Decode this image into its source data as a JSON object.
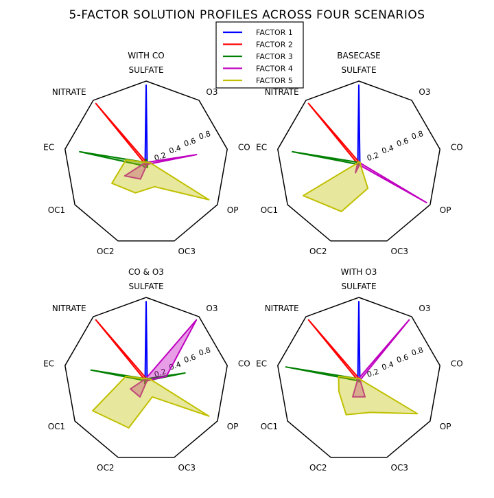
{
  "chart_data": {
    "type": "radar",
    "title": "5-FACTOR SOLUTION PROFILES ACROSS FOUR SCENARIOS",
    "axes": [
      "SULFATE",
      "O3",
      "CO",
      "OP",
      "OC3",
      "OC2",
      "OC1",
      "EC",
      "NITRATE"
    ],
    "ring_labels": [
      "0.2",
      "0.4",
      "0.6",
      "0.8"
    ],
    "rlim": [
      0,
      1
    ],
    "legend": {
      "placement": "top-center",
      "entries": [
        {
          "name": "FACTOR 1",
          "color": "#0000ff"
        },
        {
          "name": "FACTOR 2",
          "color": "#ff0000"
        },
        {
          "name": "FACTOR 3",
          "color": "#008000"
        },
        {
          "name": "FACTOR 4",
          "color": "#c000c0"
        },
        {
          "name": "FACTOR 5",
          "color": "#c0c000"
        }
      ]
    },
    "panels": [
      {
        "title": "WITH CO",
        "series": [
          {
            "name": "FACTOR 1",
            "values": [
              0.95,
              0.02,
              0.02,
              0.02,
              0.02,
              0.02,
              0.02,
              0.02,
              0.02
            ]
          },
          {
            "name": "FACTOR 2",
            "values": [
              0.02,
              0.02,
              0.02,
              0.02,
              0.02,
              0.02,
              0.02,
              0.02,
              0.95
            ]
          },
          {
            "name": "FACTOR 3",
            "values": [
              0.05,
              0.02,
              0.02,
              0.02,
              0.05,
              0.05,
              0.05,
              0.82,
              0.02
            ]
          },
          {
            "name": "FACTOR 4",
            "values": [
              0.02,
              0.02,
              0.62,
              0.02,
              0.02,
              0.2,
              0.3,
              0.02,
              0.02
            ]
          },
          {
            "name": "FACTOR 5",
            "values": [
              0.02,
              0.02,
              0.05,
              0.88,
              0.3,
              0.38,
              0.48,
              0.25,
              0.02
            ]
          }
        ]
      },
      {
        "title": "BASECASE",
        "series": [
          {
            "name": "FACTOR 1",
            "values": [
              0.95,
              0.02,
              0.02,
              0.02,
              0.02,
              0.02,
              0.02,
              0.02,
              0.02
            ]
          },
          {
            "name": "FACTOR 2",
            "values": [
              0.02,
              0.02,
              0.02,
              0.02,
              0.02,
              0.02,
              0.02,
              0.02,
              0.95
            ]
          },
          {
            "name": "FACTOR 3",
            "values": [
              0.02,
              0.02,
              0.02,
              0.02,
              0.02,
              0.02,
              0.02,
              0.82,
              0.02
            ]
          },
          {
            "name": "FACTOR 4",
            "values": [
              0.02,
              0.02,
              0.02,
              0.95,
              0.02,
              0.12,
              0.02,
              0.02,
              0.02
            ]
          },
          {
            "name": "FACTOR 5",
            "values": [
              0.02,
              0.02,
              0.02,
              0.02,
              0.32,
              0.62,
              0.78,
              0.02,
              0.02
            ]
          }
        ]
      },
      {
        "title": "CO & O3",
        "series": [
          {
            "name": "FACTOR 1",
            "values": [
              0.95,
              0.02,
              0.02,
              0.02,
              0.02,
              0.02,
              0.02,
              0.02,
              0.02
            ]
          },
          {
            "name": "FACTOR 2",
            "values": [
              0.02,
              0.02,
              0.02,
              0.02,
              0.02,
              0.02,
              0.02,
              0.02,
              0.95
            ]
          },
          {
            "name": "FACTOR 3",
            "values": [
              0.03,
              0.02,
              0.48,
              0.02,
              0.02,
              0.05,
              0.02,
              0.68,
              0.02
            ]
          },
          {
            "name": "FACTOR 4",
            "values": [
              0.02,
              0.95,
              0.25,
              0.02,
              0.02,
              0.22,
              0.22,
              0.02,
              0.02
            ]
          },
          {
            "name": "FACTOR 5",
            "values": [
              0.02,
              0.02,
              0.05,
              0.88,
              0.22,
              0.62,
              0.75,
              0.25,
              0.02
            ]
          }
        ]
      },
      {
        "title": "WITH O3",
        "series": [
          {
            "name": "FACTOR 1",
            "values": [
              0.95,
              0.02,
              0.02,
              0.02,
              0.02,
              0.02,
              0.02,
              0.02,
              0.02
            ]
          },
          {
            "name": "FACTOR 2",
            "values": [
              0.02,
              0.02,
              0.02,
              0.02,
              0.02,
              0.02,
              0.02,
              0.02,
              0.95
            ]
          },
          {
            "name": "FACTOR 3",
            "values": [
              0.02,
              0.02,
              0.02,
              0.02,
              0.02,
              0.02,
              0.02,
              0.9,
              0.02
            ]
          },
          {
            "name": "FACTOR 4",
            "values": [
              0.02,
              0.95,
              0.02,
              0.02,
              0.22,
              0.22,
              0.02,
              0.02,
              0.02
            ]
          },
          {
            "name": "FACTOR 5",
            "values": [
              0.02,
              0.02,
              0.02,
              0.82,
              0.42,
              0.45,
              0.28,
              0.25,
              0.02
            ]
          }
        ]
      }
    ]
  }
}
